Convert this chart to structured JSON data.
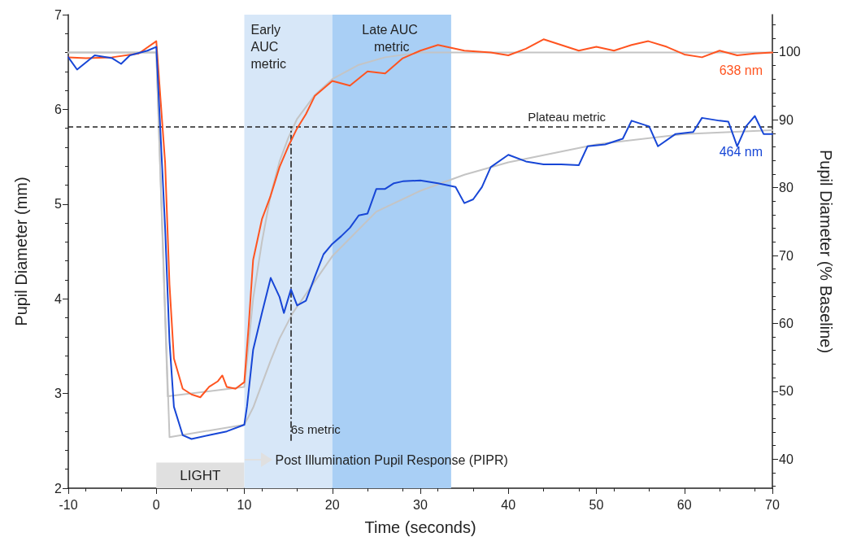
{
  "chart_data": {
    "type": "line",
    "xlabel": "Time (seconds)",
    "ylabel": "Pupil Diameter (mm)",
    "y2label": "Pupil Diameter (% Baseline)",
    "xlim": [
      -10,
      70
    ],
    "xticks": [
      -10,
      0,
      10,
      20,
      30,
      40,
      50,
      60,
      70
    ],
    "ylim": [
      2,
      7
    ],
    "yticks": [
      2,
      3,
      4,
      5,
      6,
      7
    ],
    "y2lim": [
      35.7,
      105.5
    ],
    "y2ticks": [
      40,
      50,
      60,
      70,
      80,
      90,
      100
    ],
    "grid": false,
    "legend": false,
    "marker": "none",
    "line_style": "solid",
    "series": [
      {
        "type": "line",
        "color": "#c4c4c4",
        "x": [
          -10,
          0,
          1.3,
          10,
          11,
          12,
          13,
          14,
          15,
          16,
          18,
          20,
          23,
          26,
          30,
          70
        ],
        "values": [
          6.6,
          6.6,
          2.97,
          3.07,
          4.0,
          4.6,
          5.1,
          5.45,
          5.7,
          5.9,
          6.15,
          6.32,
          6.47,
          6.55,
          6.6,
          6.6
        ]
      },
      {
        "type": "line",
        "color": "#c4c4c4",
        "x": [
          -10,
          0,
          1.5,
          10,
          11,
          12,
          13,
          14,
          15.5,
          20,
          25,
          30,
          35,
          40,
          50,
          60,
          70
        ],
        "values": [
          6.6,
          6.6,
          2.54,
          2.67,
          2.85,
          3.1,
          3.35,
          3.58,
          3.85,
          4.45,
          4.92,
          5.14,
          5.31,
          5.44,
          5.63,
          5.74,
          5.78
        ]
      },
      {
        "name": "638 nm",
        "color": "#ff5420",
        "x": [
          -10,
          -8,
          -5,
          -2,
          0,
          1,
          1.5,
          2,
          3,
          4,
          5,
          6,
          7,
          7.5,
          8,
          9,
          10,
          10.5,
          11,
          12,
          13,
          14,
          15,
          16,
          17,
          18,
          20,
          22,
          24,
          26,
          28,
          30,
          32,
          35,
          38,
          40,
          42,
          44,
          46,
          48,
          50,
          52,
          54,
          55.9,
          58,
          60,
          62,
          64,
          66,
          68,
          70
        ],
        "values": [
          6.55,
          6.54,
          6.55,
          6.59,
          6.72,
          5.44,
          4.15,
          3.37,
          3.05,
          2.99,
          2.96,
          3.07,
          3.13,
          3.19,
          3.07,
          3.05,
          3.12,
          3.72,
          4.41,
          4.84,
          5.09,
          5.39,
          5.61,
          5.8,
          5.95,
          6.14,
          6.3,
          6.25,
          6.4,
          6.38,
          6.54,
          6.62,
          6.68,
          6.62,
          6.6,
          6.57,
          6.64,
          6.74,
          6.68,
          6.62,
          6.66,
          6.62,
          6.68,
          6.72,
          6.66,
          6.58,
          6.55,
          6.62,
          6.57,
          6.59,
          6.6
        ]
      },
      {
        "name": "464 nm",
        "color": "#1746d6",
        "x": [
          -10,
          -9,
          -7,
          -5,
          -4,
          -3,
          -1,
          0,
          1,
          1.5,
          2,
          3,
          4,
          6,
          8,
          10,
          10.3,
          11,
          12,
          13,
          14,
          14.5,
          15.3,
          16,
          17,
          18,
          19,
          20,
          21,
          22,
          23,
          24,
          25,
          26,
          27,
          28,
          30,
          32,
          34,
          35,
          36,
          37,
          38,
          40,
          42,
          44,
          46,
          48,
          49,
          51,
          53,
          54,
          56,
          57,
          59,
          61,
          62,
          64,
          65,
          66,
          67,
          68,
          69,
          70
        ],
        "values": [
          6.55,
          6.42,
          6.57,
          6.54,
          6.48,
          6.57,
          6.62,
          6.66,
          4.75,
          3.55,
          2.86,
          2.56,
          2.52,
          2.56,
          2.6,
          2.67,
          2.86,
          3.46,
          3.85,
          4.22,
          4.02,
          3.85,
          4.1,
          3.93,
          3.98,
          4.23,
          4.47,
          4.58,
          4.66,
          4.75,
          4.88,
          4.9,
          5.16,
          5.16,
          5.22,
          5.24,
          5.25,
          5.22,
          5.18,
          5.01,
          5.05,
          5.18,
          5.39,
          5.52,
          5.45,
          5.42,
          5.42,
          5.41,
          5.61,
          5.63,
          5.69,
          5.88,
          5.82,
          5.61,
          5.74,
          5.76,
          5.91,
          5.88,
          5.87,
          5.61,
          5.82,
          5.93,
          5.74,
          5.74
        ]
      }
    ],
    "ref_lines": [
      {
        "axis": "y",
        "value": 5.82,
        "label": "Plateau metric",
        "color": "#222222",
        "line_style": "dashed"
      },
      {
        "axis": "x",
        "value": 15.3,
        "label": "6s metric",
        "color": "#222222",
        "line_style": "dashdot"
      }
    ],
    "bands": [
      {
        "axis": "x",
        "from": 0,
        "to": 10,
        "label": "LIGHT",
        "color": "#e0e0e0"
      },
      {
        "axis": "x",
        "from": 10,
        "to": 20,
        "label": "Early AUC metric",
        "color": "#d7e7f8"
      },
      {
        "axis": "x",
        "from": 20,
        "to": 33.5,
        "label": "Late AUC metric",
        "color": "#a9cff5"
      }
    ],
    "annotations": [
      {
        "text": "Post Illumination Pupil Response (PIPR)",
        "x": 10,
        "y": 2.3
      }
    ]
  }
}
